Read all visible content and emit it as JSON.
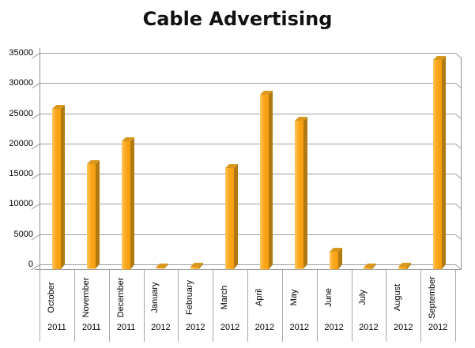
{
  "title": "Cable Advertising",
  "chart_data": {
    "type": "bar",
    "style": "3d-column",
    "title": "Cable Advertising",
    "xlabel": "",
    "ylabel": "",
    "categories": [
      "October",
      "November",
      "December",
      "January",
      "February",
      "March",
      "April",
      "May",
      "June",
      "July",
      "August",
      "September"
    ],
    "category_years": [
      "2011",
      "2011",
      "2011",
      "2012",
      "2012",
      "2012",
      "2012",
      "2012",
      "2012",
      "2012",
      "2012",
      "2012"
    ],
    "values": [
      26500,
      17300,
      21200,
      200,
      350,
      16700,
      28900,
      24500,
      2900,
      250,
      400,
      34600
    ],
    "ylim": [
      0,
      35000
    ],
    "yticks": [
      0,
      5000,
      10000,
      15000,
      20000,
      25000,
      30000,
      35000
    ],
    "grid": true,
    "legend": false,
    "colors": {
      "bar_front": "#FBA71B",
      "bar_front_light": "#FFC75F",
      "bar_front_dark": "#F49E0F",
      "bar_side": "#B17A10",
      "bar_top": "#D9981D",
      "gridline": "#9E9E9E",
      "axis": "#8F8F8F",
      "text": "#000000",
      "background": "#FFFFFF"
    }
  }
}
